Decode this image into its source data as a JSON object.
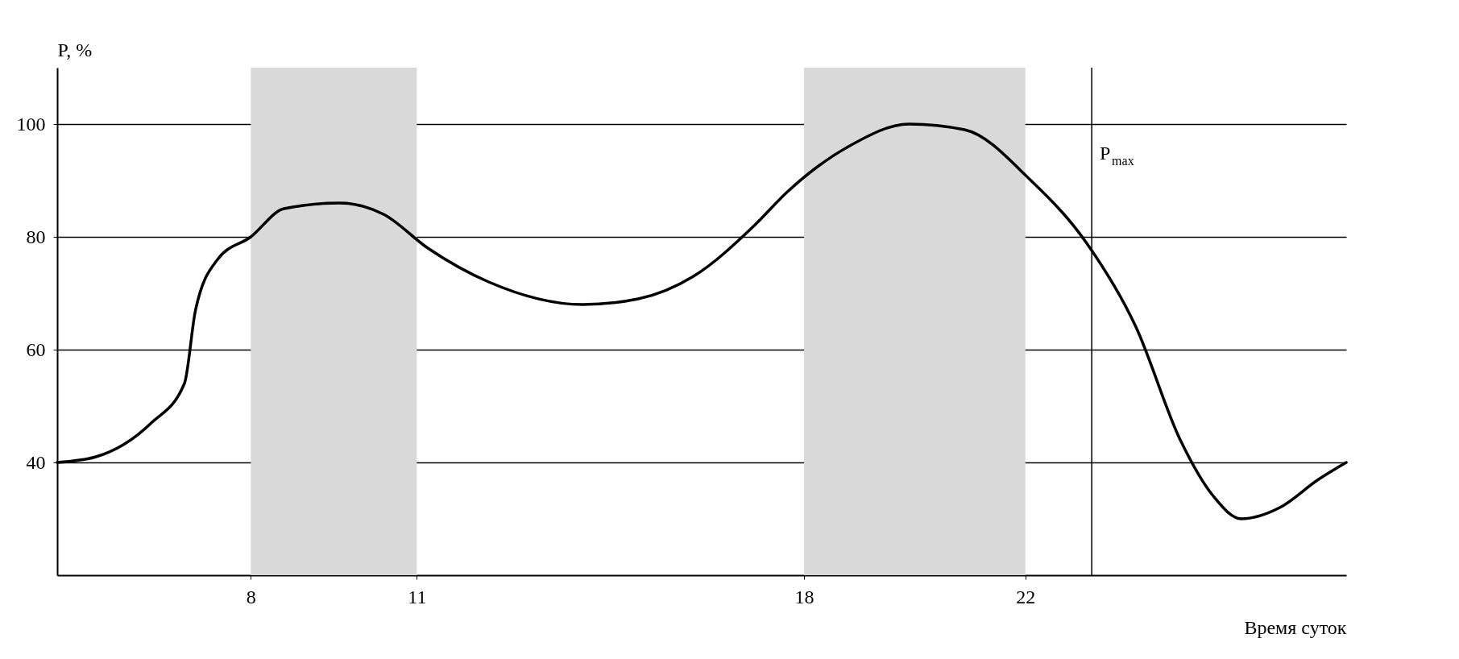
{
  "chart_data": {
    "type": "line",
    "xlabel": "Время суток",
    "ylabel": "P, %",
    "x": [
      4.5,
      5.2,
      6.2,
      6.8,
      7.0,
      7.4,
      8.0,
      8.6,
      9.6,
      10.4,
      11.2,
      12.3,
      14.0,
      15.0,
      16.0,
      17.1,
      17.7,
      18.8,
      19.9,
      20.9,
      22.1,
      23.1,
      24.0,
      24.8,
      25.4,
      25.9,
      26.6,
      27.3,
      27.8
    ],
    "series": [
      {
        "color": "#000000",
        "values": [
          40,
          41,
          47,
          54,
          67,
          76,
          80,
          85,
          86,
          84,
          78,
          72,
          68,
          69,
          73,
          82,
          88,
          96,
          100,
          99,
          90,
          79,
          64,
          44,
          34,
          30,
          32,
          37,
          40
        ]
      }
    ],
    "xlim": [
      4.5,
      27.8
    ],
    "ylim": [
      20,
      110
    ],
    "xticks": [
      8,
      11,
      18,
      22
    ],
    "yticks": [
      40,
      60,
      80,
      100
    ],
    "grid": "y",
    "marker": "none",
    "line_style": "solid",
    "bands": [
      {
        "axis": "x",
        "from": 8,
        "to": 11,
        "color": "#d9d9d9"
      },
      {
        "axis": "x",
        "from": 18,
        "to": 22,
        "color": "#d9d9d9"
      }
    ],
    "ref_lines": [
      {
        "axis": "x",
        "value": 23.2,
        "label": "P$_{max}$"
      }
    ]
  }
}
